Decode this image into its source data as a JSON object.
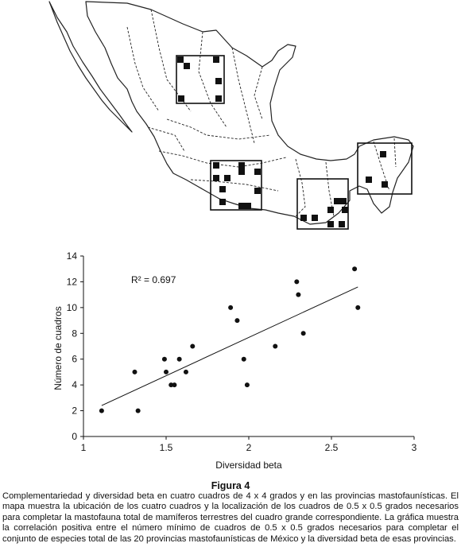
{
  "map": {
    "description_markers": true
  },
  "chart_data": {
    "type": "scatter",
    "xlabel": "Diversidad beta",
    "ylabel": "Número de cuadros",
    "xlim": [
      1,
      3
    ],
    "ylim": [
      0,
      14
    ],
    "xticks": [
      1,
      1.5,
      2,
      2.5,
      3
    ],
    "xtick_labels": [
      "1",
      "1.5",
      "2",
      "2.5",
      "3"
    ],
    "yticks": [
      0,
      2,
      4,
      6,
      8,
      10,
      12,
      14
    ],
    "ytick_labels": [
      "0",
      "2",
      "4",
      "6",
      "8",
      "10",
      "12",
      "14"
    ],
    "annotation": "R² = 0.697",
    "grid": false,
    "points": [
      {
        "x": 1.11,
        "y": 2
      },
      {
        "x": 1.33,
        "y": 2
      },
      {
        "x": 1.31,
        "y": 5
      },
      {
        "x": 1.49,
        "y": 6
      },
      {
        "x": 1.5,
        "y": 5
      },
      {
        "x": 1.53,
        "y": 4
      },
      {
        "x": 1.55,
        "y": 4
      },
      {
        "x": 1.58,
        "y": 6
      },
      {
        "x": 1.62,
        "y": 5
      },
      {
        "x": 1.66,
        "y": 7
      },
      {
        "x": 1.89,
        "y": 10
      },
      {
        "x": 1.93,
        "y": 9
      },
      {
        "x": 1.97,
        "y": 6
      },
      {
        "x": 1.99,
        "y": 4
      },
      {
        "x": 2.16,
        "y": 7
      },
      {
        "x": 2.29,
        "y": 12
      },
      {
        "x": 2.3,
        "y": 11
      },
      {
        "x": 2.33,
        "y": 8
      },
      {
        "x": 2.64,
        "y": 13
      },
      {
        "x": 2.66,
        "y": 10
      }
    ],
    "trendline": {
      "x": [
        1.11,
        2.66
      ],
      "y": [
        2.4,
        11.6
      ]
    }
  },
  "figure": {
    "title": "Figura 4",
    "caption": "Complementariedad y diversidad beta en cuatro cuadros de 4 x 4 grados y en las provincias mastofaunísticas. El mapa muestra la ubicación de los cuatro cuadros y la localización de los cuadros de 0.5 x 0.5 grados necesarios para completar la mastofauna total de mamíferos terrestres del cuadro grande correspondiente. La gráfica muestra la correlación positiva entre el número mínimo de cuadros de 0.5 x 0.5 grados necesarios para completar el conjunto de especies total de las 20 provincias mastofaunísticas de México y la diversidad beta de esas provincias."
  }
}
